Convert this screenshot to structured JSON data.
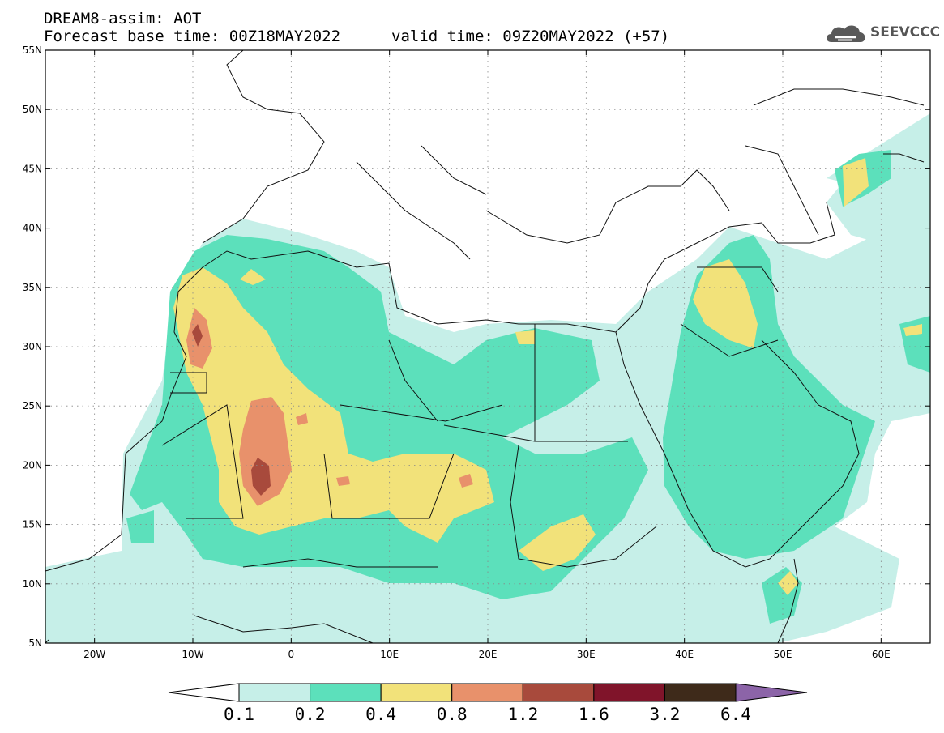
{
  "header": {
    "line1": "DREAM8-assim: AOT",
    "line2": "Forecast base time: 00Z18MAY2022",
    "valid": "valid time: 09Z20MAY2022 (+57)"
  },
  "logo": {
    "text": "SEEVCCC",
    "icon": "cloud-icon",
    "color": "#595959"
  },
  "map": {
    "lon_range": [
      -25,
      65
    ],
    "lat_range": [
      5,
      55
    ],
    "lat_ticks": [
      "5N",
      "10N",
      "15N",
      "20N",
      "25N",
      "30N",
      "35N",
      "40N",
      "45N",
      "50N",
      "55N"
    ],
    "lon_ticks": [
      "20W",
      "10W",
      "0",
      "10E",
      "20E",
      "30E",
      "40E",
      "50E",
      "60E"
    ],
    "grid": true
  },
  "colorbar": {
    "levels": [
      "0.1",
      "0.2",
      "0.4",
      "0.8",
      "1.2",
      "1.6",
      "3.2",
      "6.4"
    ],
    "colors": [
      "#ffffff",
      "#c6efe8",
      "#5ce0bb",
      "#f2e27a",
      "#e8916b",
      "#a84a3c",
      "#80142a",
      "#3e2a1a",
      "#8c64a8"
    ]
  }
}
